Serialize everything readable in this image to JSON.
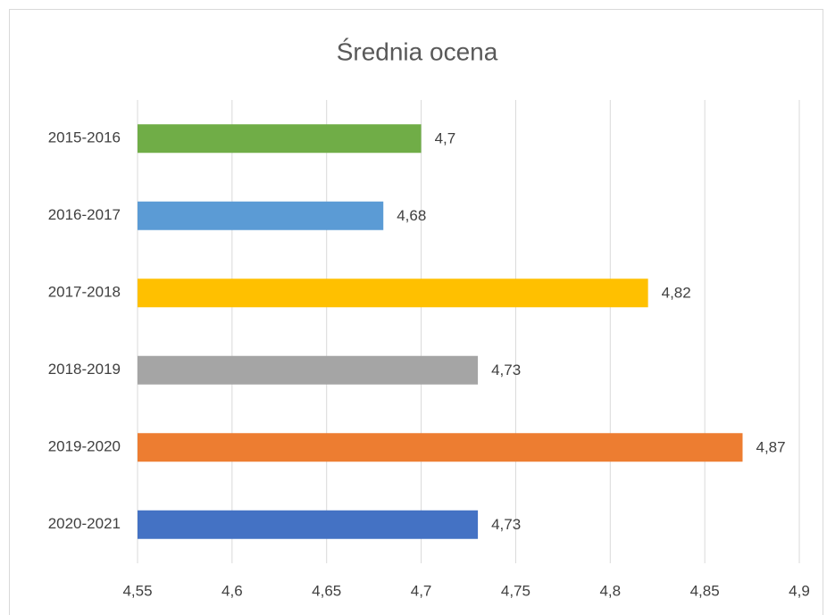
{
  "chart_data": {
    "type": "hbar",
    "title": "Średnia ocena",
    "categories": [
      "2015-2016",
      "2016-2017",
      "2017-2018",
      "2018-2019",
      "2019-2020",
      "2020-2021"
    ],
    "values": [
      4.7,
      4.68,
      4.82,
      4.73,
      4.87,
      4.73
    ],
    "value_labels": [
      "4,7",
      "4,68",
      "4,82",
      "4,73",
      "4,87",
      "4,73"
    ],
    "colors": [
      "#70ad47",
      "#5b9bd5",
      "#ffc000",
      "#a5a5a5",
      "#ed7d31",
      "#4472c4"
    ],
    "xlim": [
      4.55,
      4.9
    ],
    "xticks": [
      {
        "value": 4.55,
        "label": "4,55"
      },
      {
        "value": 4.6,
        "label": "4,6"
      },
      {
        "value": 4.65,
        "label": "4,65"
      },
      {
        "value": 4.7,
        "label": "4,7"
      },
      {
        "value": 4.75,
        "label": "4,75"
      },
      {
        "value": 4.8,
        "label": "4,8"
      },
      {
        "value": 4.85,
        "label": "4,85"
      },
      {
        "value": 4.9,
        "label": "4,9"
      }
    ],
    "grid": true
  }
}
